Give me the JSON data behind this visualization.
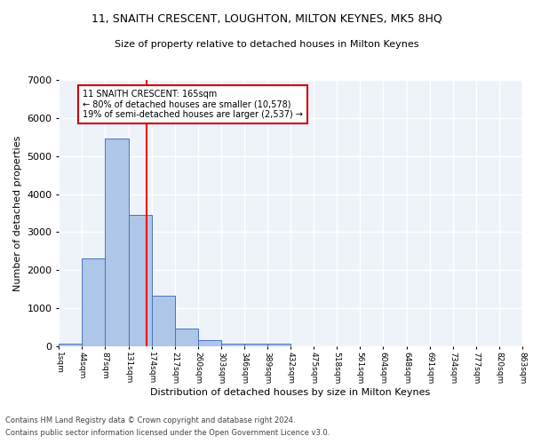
{
  "title1": "11, SNAITH CRESCENT, LOUGHTON, MILTON KEYNES, MK5 8HQ",
  "title2": "Size of property relative to detached houses in Milton Keynes",
  "xlabel": "Distribution of detached houses by size in Milton Keynes",
  "ylabel": "Number of detached properties",
  "footnote1": "Contains HM Land Registry data © Crown copyright and database right 2024.",
  "footnote2": "Contains public sector information licensed under the Open Government Licence v3.0.",
  "bin_edges": [
    1,
    44,
    87,
    131,
    174,
    217,
    260,
    303,
    346,
    389,
    432,
    475,
    518,
    561,
    604,
    648,
    691,
    734,
    777,
    820,
    863
  ],
  "bar_heights": [
    75,
    2300,
    5450,
    3450,
    1320,
    460,
    165,
    80,
    80,
    65,
    0,
    0,
    0,
    0,
    0,
    0,
    0,
    0,
    0,
    0
  ],
  "bar_color": "#aec6e8",
  "bar_edge_color": "#4472c4",
  "background_color": "#eef2f9",
  "grid_color": "#ffffff",
  "red_line_x": 165,
  "annotation_text": "11 SNAITH CRESCENT: 165sqm\n← 80% of detached houses are smaller (10,578)\n19% of semi-detached houses are larger (2,537) →",
  "annotation_box_color": "#ffffff",
  "annotation_border_color": "#cc0000",
  "ylim": [
    0,
    7000
  ],
  "yticks": [
    0,
    1000,
    2000,
    3000,
    4000,
    5000,
    6000,
    7000
  ],
  "tick_labels": [
    "1sqm",
    "44sqm",
    "87sqm",
    "131sqm",
    "174sqm",
    "217sqm",
    "260sqm",
    "303sqm",
    "346sqm",
    "389sqm",
    "432sqm",
    "475sqm",
    "518sqm",
    "561sqm",
    "604sqm",
    "648sqm",
    "691sqm",
    "734sqm",
    "777sqm",
    "820sqm",
    "863sqm"
  ]
}
